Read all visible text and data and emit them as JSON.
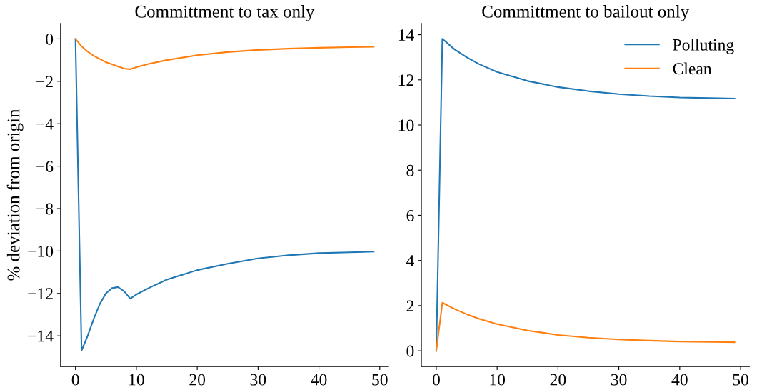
{
  "chart_data": [
    {
      "type": "line",
      "title": "Committment to tax only",
      "ylabel": "% deviation from origin",
      "xlim": [
        -2.45,
        51.45
      ],
      "ylim": [
        -15.45,
        0.73
      ],
      "xticks": [
        0,
        10,
        20,
        30,
        40,
        50
      ],
      "yticks": [
        {
          "value": -14,
          "label": "−14"
        },
        {
          "value": -12,
          "label": "−12"
        },
        {
          "value": -10,
          "label": "−10"
        },
        {
          "value": -8,
          "label": "−8"
        },
        {
          "value": -6,
          "label": "−6"
        },
        {
          "value": -4,
          "label": "−4"
        },
        {
          "value": -2,
          "label": "−2"
        },
        0
      ],
      "grid": false,
      "legend": false,
      "series": [
        {
          "color": "#1f77b4",
          "x": [
            0,
            1,
            2,
            3,
            4,
            5,
            6,
            7,
            8,
            9,
            10,
            12,
            15,
            20,
            25,
            30,
            35,
            40,
            45,
            49
          ],
          "values": [
            0,
            -14.7,
            -14.0,
            -13.2,
            -12.5,
            -12.0,
            -11.75,
            -11.7,
            -11.9,
            -12.25,
            -12.05,
            -11.75,
            -11.35,
            -10.9,
            -10.6,
            -10.35,
            -10.2,
            -10.1,
            -10.06,
            -10.03
          ]
        },
        {
          "color": "#ff7f0e",
          "x": [
            0,
            1,
            2,
            3,
            4,
            5,
            6,
            7,
            8,
            9,
            10,
            12,
            15,
            20,
            25,
            30,
            35,
            40,
            45,
            49
          ],
          "values": [
            0,
            -0.35,
            -0.6,
            -0.8,
            -0.95,
            -1.1,
            -1.2,
            -1.3,
            -1.4,
            -1.43,
            -1.33,
            -1.18,
            -1.0,
            -0.77,
            -0.62,
            -0.52,
            -0.46,
            -0.42,
            -0.39,
            -0.37
          ]
        }
      ]
    },
    {
      "type": "line",
      "title": "Committment to bailout only",
      "xlim": [
        -2.45,
        51.45
      ],
      "ylim": [
        -0.7,
        14.5
      ],
      "xticks": [
        0,
        10,
        20,
        30,
        40,
        50
      ],
      "yticks": [
        0,
        2,
        4,
        6,
        8,
        10,
        12,
        14
      ],
      "grid": false,
      "legend": "top right",
      "series": [
        {
          "name": "Polluting",
          "color": "#1f77b4",
          "x": [
            0,
            1,
            3,
            5,
            7,
            10,
            15,
            20,
            25,
            30,
            35,
            40,
            45,
            49
          ],
          "values": [
            0,
            13.82,
            13.35,
            13.0,
            12.7,
            12.35,
            11.95,
            11.68,
            11.5,
            11.37,
            11.28,
            11.22,
            11.19,
            11.17
          ]
        },
        {
          "name": "Clean",
          "color": "#ff7f0e",
          "x": [
            0,
            1,
            3,
            5,
            7,
            10,
            15,
            20,
            25,
            30,
            35,
            40,
            45,
            49
          ],
          "values": [
            0,
            2.13,
            1.85,
            1.62,
            1.42,
            1.18,
            0.9,
            0.7,
            0.58,
            0.5,
            0.45,
            0.41,
            0.39,
            0.38
          ]
        }
      ]
    }
  ]
}
